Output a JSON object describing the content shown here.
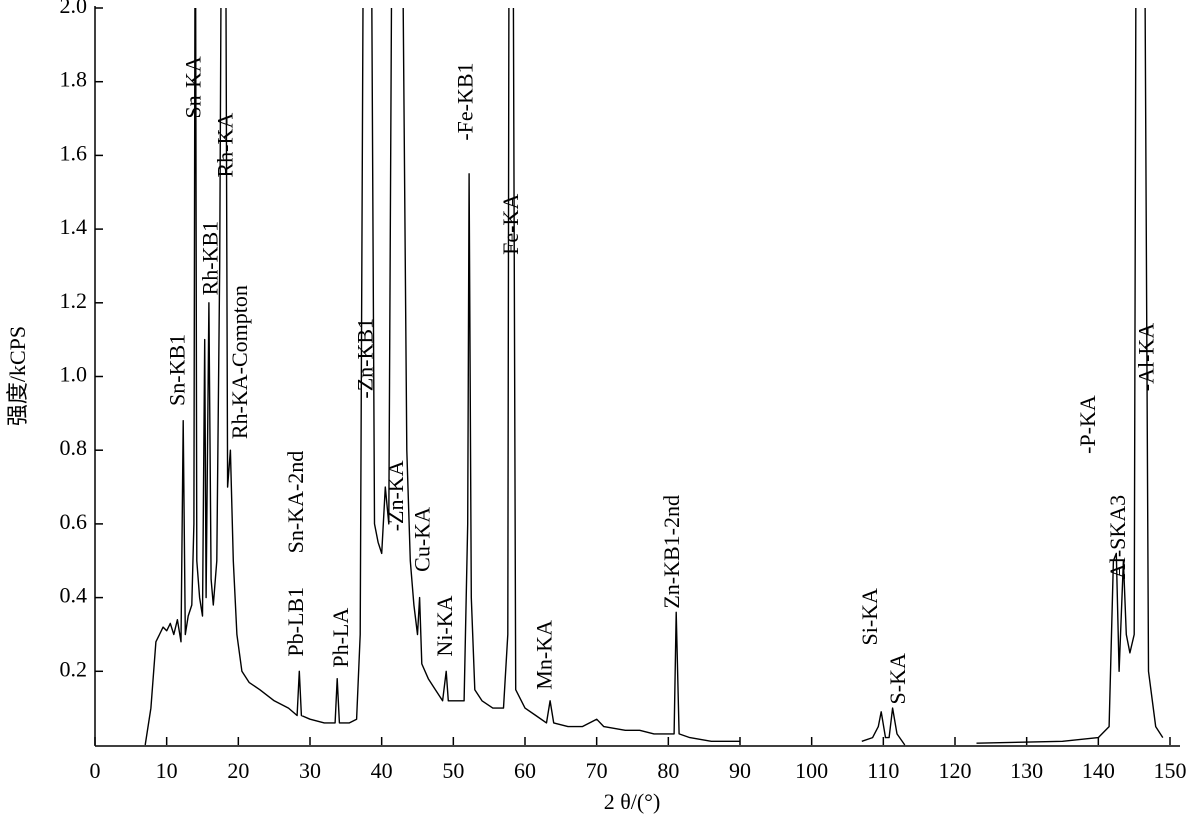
{
  "chart_data": {
    "type": "line",
    "x_label": "2 θ/(°)",
    "y_label": "强度/kCPS",
    "xlim": [
      0,
      150
    ],
    "xticks": [
      0,
      10,
      20,
      30,
      40,
      50,
      60,
      70,
      80,
      90,
      100,
      110,
      120,
      130,
      140,
      150
    ],
    "ylim": [
      0,
      2
    ],
    "yticks": [
      0.2,
      0.4,
      0.6,
      0.8,
      {
        "value": 1,
        "label": "1.0"
      },
      1.2,
      1.4,
      1.6,
      1.8,
      {
        "value": 2,
        "label": "2.0"
      }
    ],
    "series": [
      {
        "color": "#000000",
        "x": [
          7,
          7.8,
          8.5,
          9,
          9.5,
          10,
          10.5,
          11,
          11.5,
          12,
          12.3,
          12.6,
          13,
          13.5,
          13.8,
          14,
          14.2,
          14.6,
          15,
          15.3,
          15.5,
          15.9,
          16.2,
          16.5,
          17,
          17.4,
          17.7,
          18.2,
          18.5,
          18.9,
          19.3,
          19.8,
          20.5,
          21.5,
          23,
          25,
          27,
          28.2,
          28.5,
          28.8,
          30,
          32,
          33.5,
          33.8,
          34.1,
          35.5,
          36.5,
          37,
          37.5,
          38.5,
          39,
          39.5,
          40,
          40.5,
          41,
          41.5,
          42.8,
          43.5,
          44,
          44.5,
          45,
          45.3,
          45.6,
          46.5,
          47.5,
          48.5,
          49,
          49.3,
          50.5,
          51.5,
          52,
          52.2,
          52.5,
          53,
          54,
          55.5,
          57,
          57.6,
          57.8,
          58.3,
          58.7,
          60,
          61.5,
          63,
          63.5,
          64,
          66,
          68,
          70,
          71,
          74,
          76,
          78,
          80,
          80.8,
          81.1,
          81.5,
          83,
          86,
          90,
          null,
          107,
          108.5,
          109.3,
          109.7,
          110.3,
          110.8,
          111.3,
          111.9,
          113,
          null,
          123,
          135,
          140,
          141.5,
          142.1,
          142.5,
          142.9,
          143.5,
          143.9,
          144.4,
          145,
          145.3,
          146.4,
          147,
          148,
          149
        ],
        "values": [
          0,
          0.1,
          0.28,
          0.3,
          0.32,
          0.31,
          0.33,
          0.3,
          0.34,
          0.28,
          0.88,
          0.3,
          0.35,
          0.38,
          0.6,
          2.5,
          0.5,
          0.4,
          0.35,
          1.1,
          0.4,
          1.2,
          0.45,
          0.38,
          0.5,
          1.3,
          2.5,
          2.5,
          0.7,
          0.8,
          0.5,
          0.3,
          0.2,
          0.17,
          0.15,
          0.12,
          0.1,
          0.08,
          0.2,
          0.08,
          0.07,
          0.06,
          0.06,
          0.18,
          0.06,
          0.06,
          0.07,
          0.3,
          2.5,
          2.5,
          0.6,
          0.55,
          0.52,
          0.7,
          0.6,
          2.5,
          2.5,
          0.8,
          0.5,
          0.38,
          0.3,
          0.4,
          0.22,
          0.18,
          0.15,
          0.12,
          0.2,
          0.12,
          0.12,
          0.12,
          0.6,
          1.55,
          0.4,
          0.15,
          0.12,
          0.1,
          0.1,
          0.3,
          2.5,
          2.5,
          0.15,
          0.1,
          0.08,
          0.06,
          0.12,
          0.06,
          0.05,
          0.05,
          0.07,
          0.05,
          0.04,
          0.04,
          0.03,
          0.03,
          0.03,
          0.36,
          0.03,
          0.02,
          0.01,
          0.01,
          null,
          0.01,
          0.02,
          0.05,
          0.09,
          0.02,
          0.02,
          0.1,
          0.03,
          0,
          null,
          0.005,
          0.01,
          0.02,
          0.05,
          0.5,
          0.52,
          0.2,
          0.5,
          0.3,
          0.25,
          0.3,
          2.5,
          2.5,
          0.2,
          0.05,
          0.02
        ]
      }
    ],
    "annotations": [
      {
        "text": "Sn-KB1",
        "x": 11.8,
        "y": 0.92
      },
      {
        "text": "Sn-KA",
        "x": 14,
        "y": 1.7
      },
      {
        "text": "Rh-KB1",
        "x": 16.4,
        "y": 1.22
      },
      {
        "text": "Rh-KA",
        "x": 18.5,
        "y": 1.54
      },
      {
        "text": "Rh-KA-Compton",
        "x": 20.5,
        "y": 0.83
      },
      {
        "text": "Pb-LB1",
        "x": 28.3,
        "y": 0.24
      },
      {
        "text": "Sn-KA-2nd",
        "x": 28.3,
        "y": 0.52
      },
      {
        "text": "Ph-LA",
        "x": 34.6,
        "y": 0.21
      },
      {
        "text": "-Zn-KB1",
        "x": 38,
        "y": 0.94
      },
      {
        "text": "-Zn-KA",
        "x": 42.3,
        "y": 0.58
      },
      {
        "text": "Cu-KA",
        "x": 46,
        "y": 0.47
      },
      {
        "text": "Ni-KA",
        "x": 49.1,
        "y": 0.24
      },
      {
        "text": "-Fe-KB1",
        "x": 52,
        "y": 1.64
      },
      {
        "text": "Fe-KA",
        "x": 58.3,
        "y": 1.33
      },
      {
        "text": "Mn-KA",
        "x": 63,
        "y": 0.15
      },
      {
        "text": "Zn-KB1-2nd",
        "x": 80.8,
        "y": 0.37
      },
      {
        "text": "Si-KA",
        "x": 108.4,
        "y": 0.27
      },
      {
        "text": "S-KA",
        "x": 112.3,
        "y": 0.11
      },
      {
        "text": "-P-KA",
        "x": 138.8,
        "y": 0.79
      },
      {
        "text": "Al-SKA3",
        "x": 143,
        "y": 0.45
      },
      {
        "text": "-Al-KA",
        "x": 147,
        "y": 0.96
      }
    ]
  }
}
